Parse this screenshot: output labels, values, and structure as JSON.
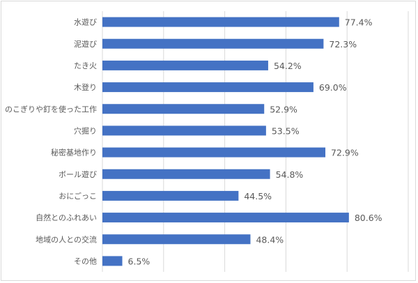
{
  "chart_data": {
    "type": "bar",
    "orientation": "horizontal",
    "title": "",
    "xlabel": "",
    "ylabel": "",
    "xlim": [
      0,
      100
    ],
    "grid": true,
    "categories": [
      "水遊び",
      "泥遊び",
      "たき火",
      "木登り",
      "のこぎりや釘を使った工作",
      "穴掘り",
      "秘密基地作り",
      "ボール遊び",
      "おにごっこ",
      "自然とのふれあい",
      "地域の人との交流",
      "その他"
    ],
    "values": [
      77.4,
      72.3,
      54.2,
      69.0,
      52.9,
      53.5,
      72.9,
      54.8,
      44.5,
      80.6,
      48.4,
      6.5
    ],
    "labels": [
      "77.4%",
      "72.3%",
      "54.2%",
      "69.0%",
      "52.9%",
      "53.5%",
      "72.9%",
      "54.8%",
      "44.5%",
      "80.6%",
      "48.4%",
      "6.5%"
    ],
    "bar_color": "#4472C4"
  }
}
